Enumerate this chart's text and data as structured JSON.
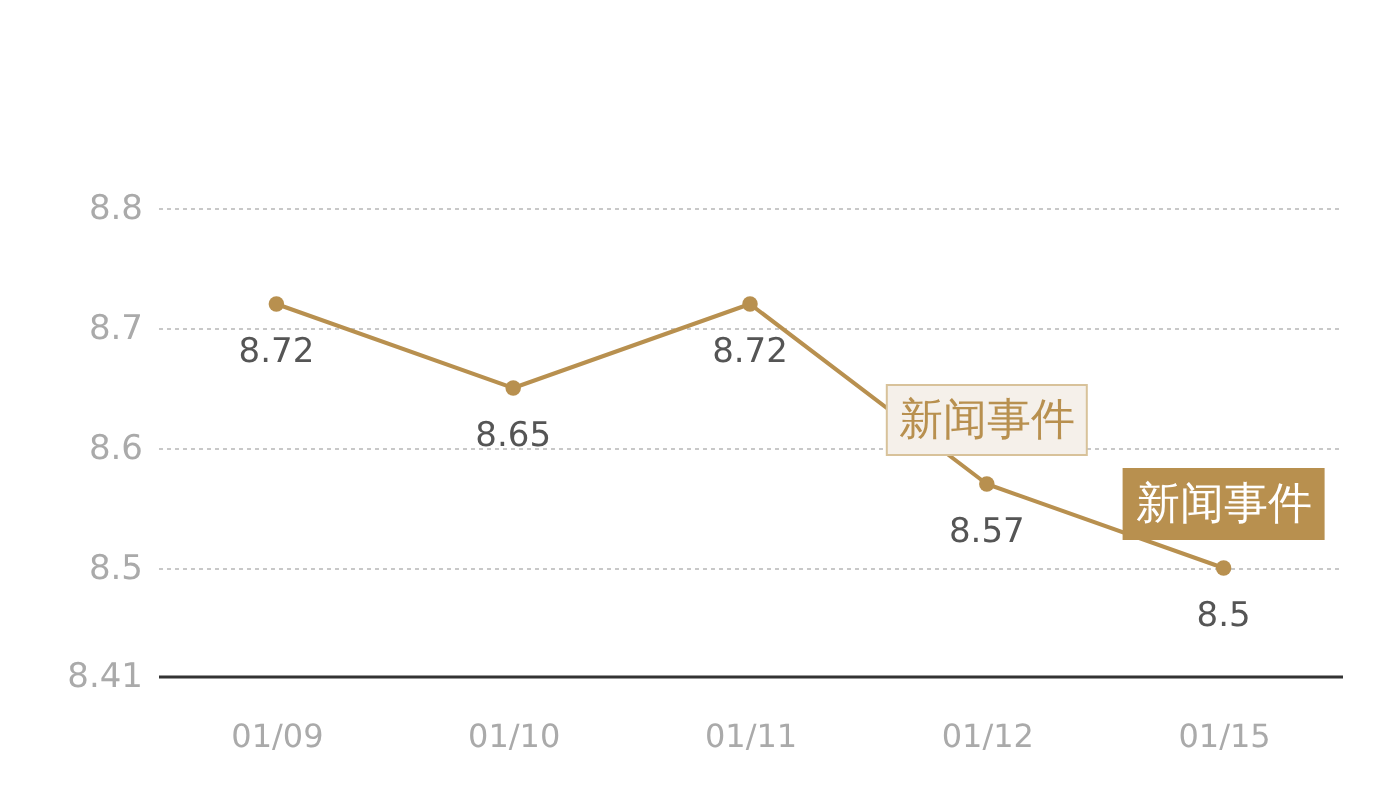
{
  "chart_data": {
    "type": "line",
    "categories": [
      "01/09",
      "01/10",
      "01/11",
      "01/12",
      "01/15"
    ],
    "series": [
      {
        "color": "#b8904f",
        "values": [
          8.72,
          8.65,
          8.72,
          8.57,
          8.5
        ]
      }
    ],
    "ylim": [
      8.41,
      8.8
    ],
    "yticks": [
      8.41,
      8.5,
      8.6,
      8.7,
      8.8
    ],
    "grid": "y",
    "marker": "circle",
    "line_style": "solid",
    "data_labels": true,
    "annotations": [
      {
        "text": "新闻事件",
        "x": "01/12",
        "y": 8.57
      },
      {
        "text": "新闻事件",
        "x": "01/15",
        "y": 8.5
      }
    ]
  }
}
